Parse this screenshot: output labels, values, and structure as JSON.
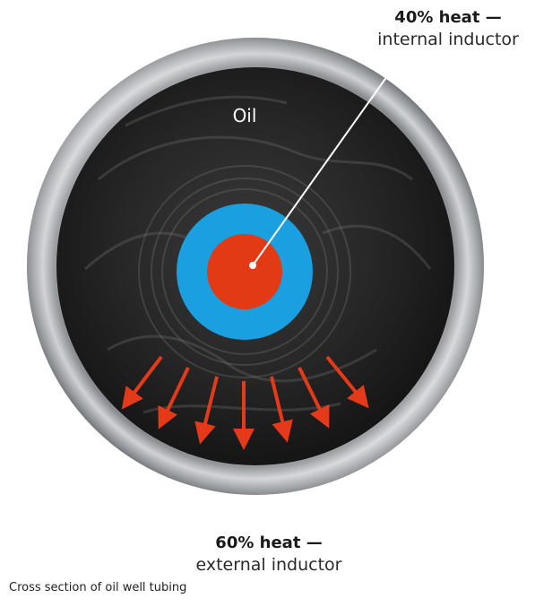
{
  "labels": {
    "internal_strong": "40% heat —",
    "internal_light": "internal inductor",
    "external_strong": "60% heat —",
    "external_light": "external inductor",
    "oil": "Oil",
    "caption": "Cross section of oil well tubing"
  },
  "colors": {
    "steel": "#b9bcc0",
    "oil": "#2b2b2b",
    "insulation": "#1a9fe0",
    "core": "#e23a14",
    "arrows": "#e53a1a"
  },
  "heat_share": {
    "internal_percent": 40,
    "external_percent": 60
  }
}
